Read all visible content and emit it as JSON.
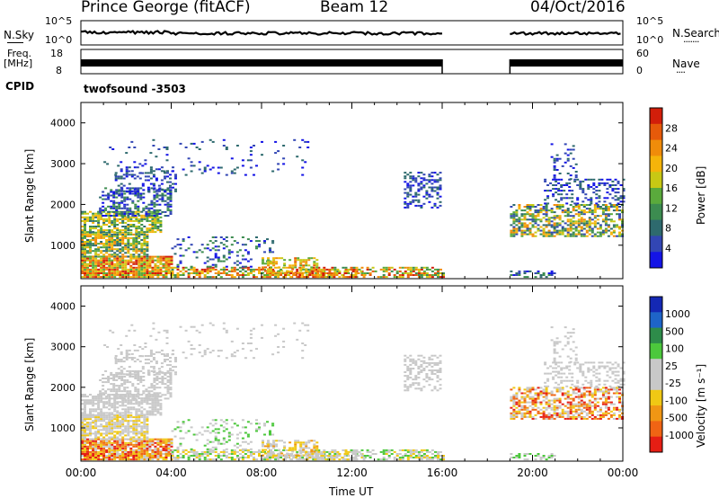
{
  "header": {
    "station": "Prince George (fitACF)",
    "beam": "Beam 12",
    "date": "04/Oct/2016"
  },
  "strip_nsky": {
    "left_label": "N.Sky",
    "left_ticks": [
      "10^5",
      "10^0"
    ],
    "right_label": "N.Search",
    "right_ticks": [
      "10^5",
      "10^0"
    ]
  },
  "strip_freq": {
    "left_label_1": "Freq.",
    "left_label_2": "[MHz]",
    "left_ticks": [
      "18",
      "8"
    ],
    "right_label": "Nave",
    "right_ticks": [
      "60",
      "0"
    ]
  },
  "cpid": {
    "label": "CPID",
    "program": "twofsound -3503"
  },
  "chart_data": [
    {
      "type": "heatmap",
      "panel": "power",
      "ylabel": "Slant Range [km]",
      "ylim": [
        180,
        4500
      ],
      "yticks": [
        1000,
        2000,
        3000,
        4000
      ],
      "xlim": [
        "00:00",
        "24:00"
      ],
      "colorbar_label": "Power [dB]",
      "colorbar_ticks": [
        4,
        8,
        12,
        16,
        20,
        24,
        28
      ],
      "colorbar_colors": [
        "#1414e6",
        "#3246b4",
        "#2e6a6e",
        "#3c8c50",
        "#5aaa3c",
        "#c8c814",
        "#f5b40a",
        "#f08c0a",
        "#e65a0a",
        "#d21e0a"
      ],
      "data_gaps": [
        [
          "16:00",
          "19:00"
        ]
      ]
    },
    {
      "type": "heatmap",
      "panel": "velocity",
      "ylabel": "Slant Range [km]",
      "ylim": [
        180,
        4500
      ],
      "yticks": [
        1000,
        2000,
        3000,
        4000
      ],
      "xlim": [
        "00:00",
        "24:00"
      ],
      "xticks": [
        "00:00",
        "04:00",
        "08:00",
        "12:00",
        "16:00",
        "20:00",
        "00:00"
      ],
      "xlabel": "Time UT",
      "colorbar_label": "Velocity [m s⁻¹]",
      "colorbar_ticks": [
        "1000",
        "500",
        "100",
        "25",
        "-25",
        "-100",
        "-500",
        "-1000"
      ],
      "colorbar_colors": [
        "#1428b4",
        "#1e64c8",
        "#2e8c4a",
        "#4cc83c",
        "#c8c8c8",
        "#c8c8c8",
        "#f0c814",
        "#f09614",
        "#f06414",
        "#e61e14"
      ],
      "data_gaps": [
        [
          "16:00",
          "19:00"
        ]
      ]
    }
  ]
}
